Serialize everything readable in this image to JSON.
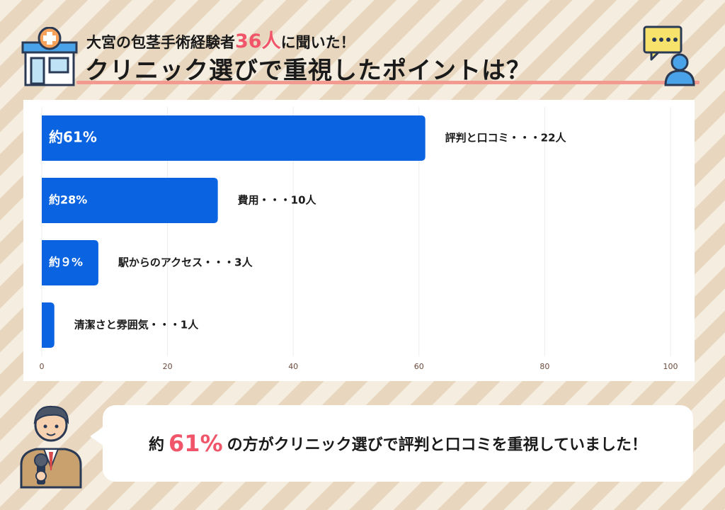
{
  "header": {
    "subtitle_pre": "大宮の包茎手術経験者",
    "subtitle_highlight": "36人",
    "subtitle_post": "に聞いた！",
    "title": "クリニック選びで重視したポイントは？",
    "icons": [
      "clinic-building-icon",
      "chat-bubble-person-icon"
    ],
    "highlight_color": "#f1556a"
  },
  "chart_data": {
    "type": "bar",
    "orientation": "horizontal",
    "categories": [
      "評判と口コミ・・・22人",
      "費用・・・10人",
      "駅からのアクセス・・・3人",
      "清潔さと雰囲気・・・1人"
    ],
    "values": [
      61,
      28,
      9,
      2
    ],
    "bar_labels": [
      "約61%",
      "約28%",
      "約９%",
      ""
    ],
    "xlim": [
      0,
      100
    ],
    "xticks": [
      "0",
      "20",
      "40",
      "60",
      "80",
      "100"
    ],
    "grid": true,
    "bar_color": "#0a63e0"
  },
  "summary": {
    "pre": "約",
    "highlight": "61%",
    "post": "の方がクリニック選びで評判と口コミを重視していました！",
    "icon": "reporter-with-microphone-icon"
  }
}
